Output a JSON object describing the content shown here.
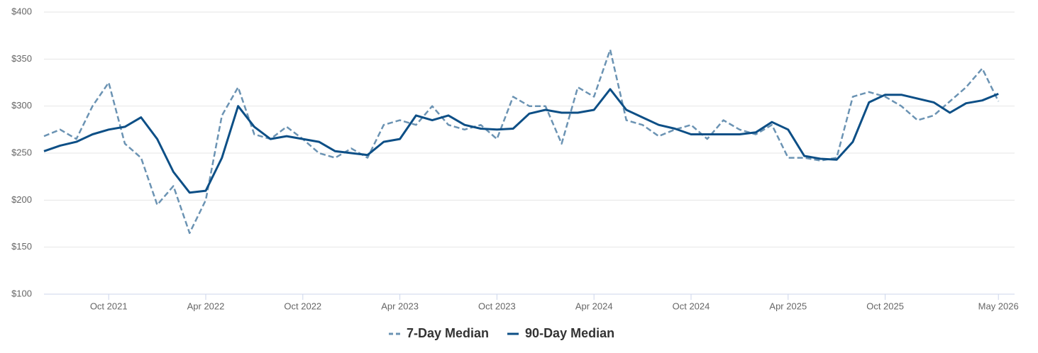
{
  "chart_data": {
    "type": "line",
    "x": [
      "2021-06",
      "2021-07",
      "2021-08",
      "2021-09",
      "2021-10",
      "2021-11",
      "2021-12",
      "2022-01",
      "2022-02",
      "2022-03",
      "2022-04",
      "2022-05",
      "2022-06",
      "2022-07",
      "2022-08",
      "2022-09",
      "2022-10",
      "2022-11",
      "2022-12",
      "2023-01",
      "2023-02",
      "2023-03",
      "2023-04",
      "2023-05",
      "2023-06",
      "2023-07",
      "2023-08",
      "2023-09",
      "2023-10",
      "2023-11",
      "2023-12",
      "2024-01",
      "2024-02",
      "2024-03",
      "2024-04",
      "2024-05",
      "2024-06",
      "2024-07",
      "2024-08",
      "2024-09",
      "2024-10",
      "2024-11",
      "2024-12",
      "2025-01",
      "2025-02",
      "2025-03",
      "2025-04",
      "2025-05",
      "2025-06",
      "2025-07",
      "2025-08",
      "2025-09",
      "2025-10",
      "2025-11",
      "2025-12",
      "2026-01",
      "2026-02",
      "2026-03",
      "2026-04",
      "2026-05"
    ],
    "series": [
      {
        "name": "7-Day Median",
        "color": "#6b93b3",
        "dash": true,
        "values": [
          268,
          275,
          265,
          300,
          325,
          260,
          245,
          195,
          215,
          165,
          200,
          290,
          320,
          270,
          265,
          278,
          265,
          250,
          245,
          255,
          245,
          280,
          285,
          280,
          300,
          280,
          275,
          280,
          265,
          310,
          300,
          300,
          260,
          320,
          310,
          360,
          285,
          280,
          268,
          275,
          280,
          265,
          285,
          275,
          270,
          280,
          245,
          245,
          242,
          245,
          310,
          315,
          310,
          300,
          285,
          290,
          305,
          320,
          340,
          305
        ]
      },
      {
        "name": "90-Day Median",
        "color": "#0d4f86",
        "dash": false,
        "values": [
          252,
          258,
          262,
          270,
          275,
          278,
          288,
          265,
          230,
          208,
          210,
          245,
          300,
          278,
          265,
          268,
          265,
          262,
          252,
          250,
          248,
          262,
          265,
          290,
          285,
          290,
          280,
          276,
          275,
          276,
          292,
          296,
          293,
          293,
          296,
          318,
          296,
          288,
          280,
          276,
          270,
          270,
          270,
          270,
          272,
          283,
          275,
          247,
          244,
          243,
          262,
          304,
          312,
          312,
          308,
          304,
          293,
          303,
          306,
          313
        ]
      }
    ],
    "xlim": [
      "2021-06",
      "2026-06"
    ],
    "xticks": [
      {
        "value": "2021-10",
        "label": "Oct 2021"
      },
      {
        "value": "2022-04",
        "label": "Apr 2022"
      },
      {
        "value": "2022-10",
        "label": "Oct 2022"
      },
      {
        "value": "2023-04",
        "label": "Apr 2023"
      },
      {
        "value": "2023-10",
        "label": "Oct 2023"
      },
      {
        "value": "2024-04",
        "label": "Apr 2024"
      },
      {
        "value": "2024-10",
        "label": "Oct 2024"
      },
      {
        "value": "2025-04",
        "label": "Apr 2025"
      },
      {
        "value": "2025-10",
        "label": "Oct 2025"
      },
      {
        "value": "2026-05",
        "label": "May 2026"
      }
    ],
    "ylim": [
      100,
      400
    ],
    "yticks": [
      {
        "value": 100,
        "label": "$100"
      },
      {
        "value": 150,
        "label": "$150"
      },
      {
        "value": 200,
        "label": "$200"
      },
      {
        "value": 250,
        "label": "$250"
      },
      {
        "value": 300,
        "label": "$300"
      },
      {
        "value": 350,
        "label": "$350"
      },
      {
        "value": 400,
        "label": "$400"
      }
    ],
    "grid": true,
    "legend": "bottom"
  }
}
